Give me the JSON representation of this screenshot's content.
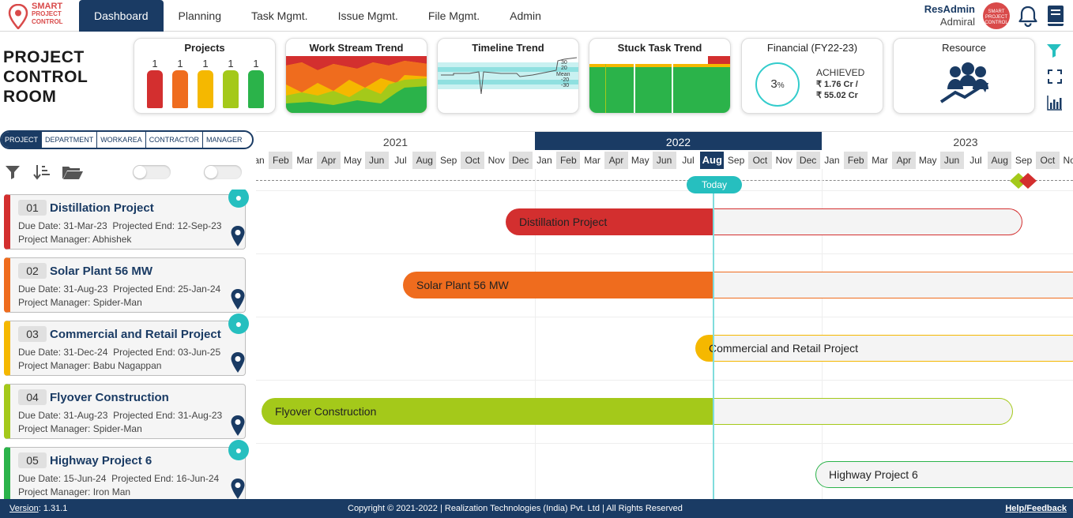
{
  "logo": {
    "line1": "SMART",
    "line2": "PROJECT",
    "line3": "CONTROL"
  },
  "nav": {
    "tabs": [
      "Dashboard",
      "Planning",
      "Task Mgmt.",
      "Issue Mgmt.",
      "File Mgmt.",
      "Admin"
    ],
    "active": "Dashboard"
  },
  "user": {
    "name": "ResAdmin",
    "role": "Admiral",
    "avatar_text": "SMART PROJECT CONTROL"
  },
  "page_title": {
    "line1": "PROJECT",
    "line2": "CONTROL",
    "line3": "ROOM"
  },
  "cards": {
    "projects": {
      "title": "Projects",
      "bars": [
        {
          "count": "1",
          "color": "#d32f2f"
        },
        {
          "count": "1",
          "color": "#ef6c1e"
        },
        {
          "count": "1",
          "color": "#f5b800"
        },
        {
          "count": "1",
          "color": "#a4c91a"
        },
        {
          "count": "1",
          "color": "#2bb34a"
        }
      ]
    },
    "workstream": {
      "title": "Work Stream Trend"
    },
    "timeline": {
      "title": "Timeline Trend",
      "labels": [
        "30",
        "20",
        "Mean",
        "-20",
        "-30"
      ]
    },
    "stuck": {
      "title": "Stuck Task Trend"
    },
    "financial": {
      "title": "Financial (FY22-23)",
      "percent": "3",
      "percent_sign": "%",
      "achieved": "ACHIEVED",
      "amount1": "₹  1.76 Cr  /",
      "amount2": "₹  55.02 Cr"
    },
    "resource": {
      "title": "Resource"
    }
  },
  "filter_tabs": [
    "PROJECT",
    "DEPARTMENT",
    "WORKAREA",
    "CONTRACTOR",
    "MANAGER"
  ],
  "filter_active": "PROJECT",
  "projects": [
    {
      "num": "01",
      "name": "Distillation Project",
      "due": "Due Date: 31-Mar-23",
      "end": "Projected End: 12-Sep-23",
      "manager": "Project Manager: Abhishek",
      "color": "#d32f2f",
      "bulb": true
    },
    {
      "num": "02",
      "name": "Solar Plant 56 MW",
      "due": "Due Date: 31-Aug-23",
      "end": "Projected End: 25-Jan-24",
      "manager": "Project Manager: Spider-Man",
      "color": "#ef6c1e",
      "bulb": false
    },
    {
      "num": "03",
      "name": "Commercial and Retail Project",
      "due": "Due Date: 31-Dec-24",
      "end": "Projected End: 03-Jun-25",
      "manager": "Project Manager: Babu Nagappan",
      "color": "#f5b800",
      "bulb": true
    },
    {
      "num": "04",
      "name": "Flyover Construction",
      "due": "Due Date: 31-Aug-23",
      "end": "Projected End: 31-Aug-23",
      "manager": "Project Manager: Spider-Man",
      "color": "#a4c91a",
      "bulb": false
    },
    {
      "num": "05",
      "name": "Highway Project 6",
      "due": "Due Date: 15-Jun-24",
      "end": "Projected End: 16-Jun-24",
      "manager": "Project Manager: Iron Man",
      "color": "#2bb34a",
      "bulb": true
    }
  ],
  "gantt": {
    "years": [
      "2021",
      "2022",
      "2023"
    ],
    "current_year": "2022",
    "months": [
      "Jan",
      "Feb",
      "Mar",
      "Apr",
      "May",
      "Jun",
      "Jul",
      "Aug",
      "Sep",
      "Oct",
      "Nov",
      "Dec",
      "Jan",
      "Feb",
      "Mar",
      "Apr",
      "May",
      "Jun",
      "Jul",
      "Aug",
      "Sep",
      "Oct",
      "Nov",
      "Dec",
      "Jan",
      "Feb",
      "Mar",
      "Apr",
      "May",
      "Jun",
      "Jul",
      "Aug",
      "Sep",
      "Oct",
      "Nov"
    ],
    "today_month": "Aug",
    "today_label": "Today"
  },
  "footer": {
    "version": "Version",
    "version_num": ": 1.31.1",
    "copyright": "Copyright © 2021-2022  |  Realization Technologies (India) Pvt. Ltd  |  All Rights Reserved",
    "help": "Help/Feedback"
  }
}
